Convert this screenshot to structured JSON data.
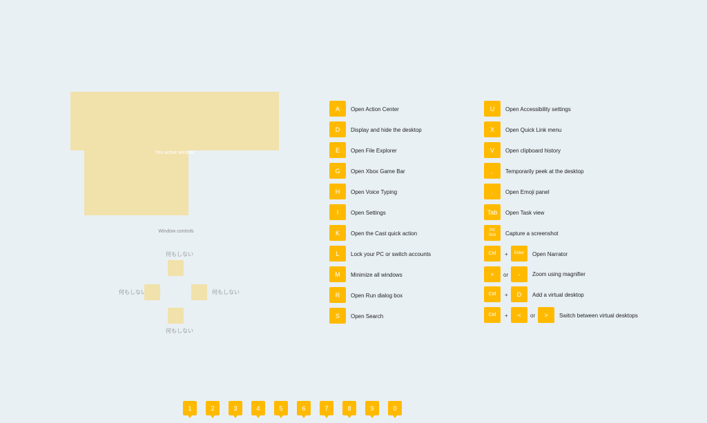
{
  "window_preview": {
    "label": "You active window"
  },
  "window_controls": {
    "title": "Window controls",
    "up": "何もしない",
    "left": "何もしない",
    "right": "何もしない",
    "down": "何もしない"
  },
  "shortcuts_left": [
    {
      "key": "A",
      "desc": "Open Action Center"
    },
    {
      "key": "D",
      "desc": "Display and hide the desktop"
    },
    {
      "key": "E",
      "desc": "Open File Explorer"
    },
    {
      "key": "G",
      "desc": "Open Xbox Game Bar"
    },
    {
      "key": "H",
      "desc": "Open Voice Typing"
    },
    {
      "key": "I",
      "desc": "Open Settings"
    },
    {
      "key": "K",
      "desc": "Open the Cast quick action"
    },
    {
      "key": "L",
      "desc": "Lock your PC or switch accounts"
    },
    {
      "key": "M",
      "desc": "Minimize all windows"
    },
    {
      "key": "R",
      "desc": "Open Run dialog box"
    },
    {
      "key": "S",
      "desc": "Open Search"
    }
  ],
  "shortcuts_right": {
    "u": {
      "key": "U",
      "desc": "Open Accessibility settings"
    },
    "x": {
      "key": "X",
      "desc": "Open Quick Link menu"
    },
    "v": {
      "key": "V",
      "desc": "Open clipboard history"
    },
    "comma": {
      "key": ",",
      "desc": "Temporarily peek at the desktop"
    },
    "period": {
      "key": ".",
      "desc": "Open Emoji panel"
    },
    "tab": {
      "key": "Tab",
      "desc": "Open Task view"
    },
    "prtscn": {
      "key": "Prt\nScn",
      "desc": "Capture a screenshot"
    },
    "narrator": {
      "key1": "Ctrl",
      "plus": "+",
      "key2": "Enter",
      "desc": "Open Narrator"
    },
    "zoom": {
      "key1": "+",
      "or": "or",
      "key2": "-",
      "desc": "Zoom using magnifier"
    },
    "vdesk_add": {
      "key1": "Ctrl",
      "plus": "+",
      "key2": "D",
      "desc": "Add a virtual desktop"
    },
    "vdesk_switch": {
      "key1": "Ctrl",
      "plus": "+",
      "key2": "<",
      "or": "or",
      "key3": ">",
      "desc": "Switch between virtual desktops"
    }
  },
  "tabs": [
    "1",
    "2",
    "3",
    "4",
    "5",
    "6",
    "7",
    "8",
    "9",
    "0"
  ],
  "colors": {
    "accent": "#ffba00",
    "preview": "#f1e1ab",
    "background": "#e9f0f4"
  }
}
